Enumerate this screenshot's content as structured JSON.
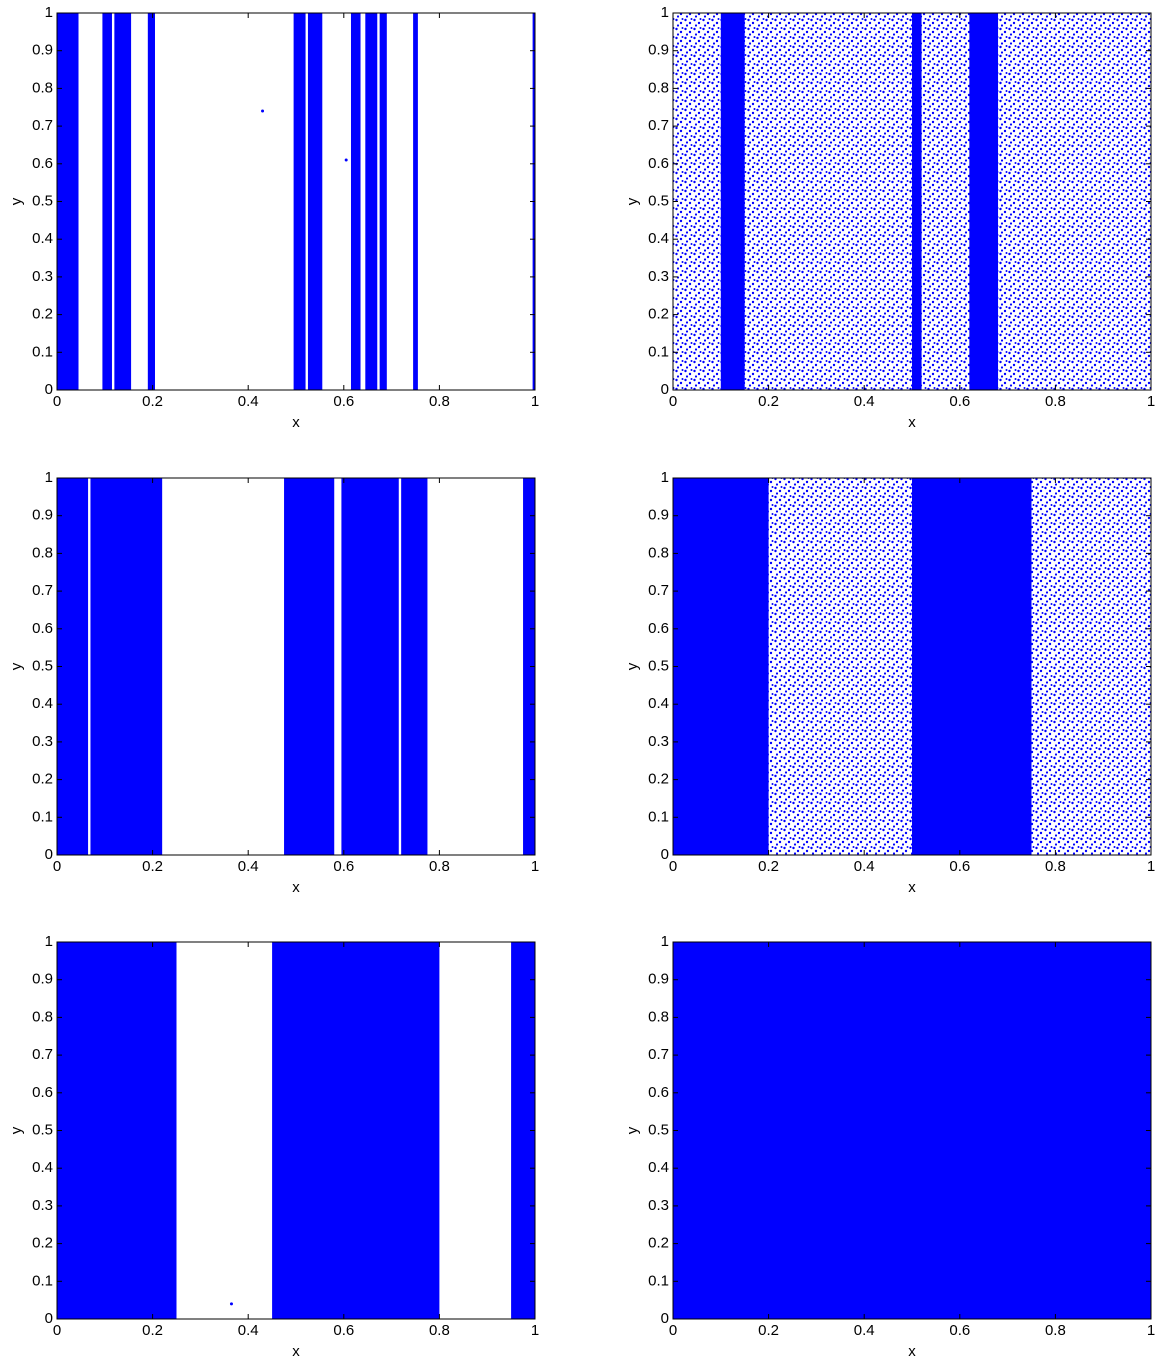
{
  "chart_data": [
    {
      "type": "scatter",
      "xlabel": "x",
      "ylabel": "y",
      "color": "#0000ff",
      "xlim": [
        0,
        1
      ],
      "ylim": [
        0,
        1
      ],
      "xticks": [
        0,
        0.2,
        0.4,
        0.6,
        0.8,
        1
      ],
      "yticks": [
        0,
        0.1,
        0.2,
        0.3,
        0.4,
        0.5,
        0.6,
        0.7,
        0.8,
        0.9,
        1
      ],
      "bands": [
        [
          0,
          0.045
        ],
        [
          0.095,
          0.115
        ],
        [
          0.12,
          0.155
        ],
        [
          0.19,
          0.205
        ],
        [
          0.495,
          0.52
        ],
        [
          0.525,
          0.555
        ],
        [
          0.615,
          0.635
        ],
        [
          0.645,
          0.67
        ],
        [
          0.675,
          0.69
        ],
        [
          0.745,
          0.755
        ],
        [
          0.995,
          1
        ]
      ],
      "sparse_bands": [],
      "points": {
        "x": [
          0.43,
          0.605
        ],
        "y": [
          0.74,
          0.61
        ]
      }
    },
    {
      "type": "scatter",
      "xlabel": "x",
      "ylabel": "y",
      "color": "#0000ff",
      "xlim": [
        0,
        1
      ],
      "ylim": [
        0,
        1
      ],
      "xticks": [
        0,
        0.2,
        0.4,
        0.6,
        0.8,
        1
      ],
      "yticks": [
        0,
        0.1,
        0.2,
        0.3,
        0.4,
        0.5,
        0.6,
        0.7,
        0.8,
        0.9,
        1
      ],
      "bands": [
        [
          0.1,
          0.15
        ],
        [
          0.5,
          0.52
        ],
        [
          0.62,
          0.68
        ]
      ],
      "sparse_bands": [
        [
          0,
          1
        ]
      ],
      "points": {
        "x": [],
        "y": []
      }
    },
    {
      "type": "scatter",
      "xlabel": "x",
      "ylabel": "y",
      "color": "#0000ff",
      "xlim": [
        0,
        1
      ],
      "ylim": [
        0,
        1
      ],
      "xticks": [
        0,
        0.2,
        0.4,
        0.6,
        0.8,
        1
      ],
      "yticks": [
        0,
        0.1,
        0.2,
        0.3,
        0.4,
        0.5,
        0.6,
        0.7,
        0.8,
        0.9,
        1
      ],
      "bands": [
        [
          0,
          0.065
        ],
        [
          0.07,
          0.22
        ],
        [
          0.475,
          0.58
        ],
        [
          0.595,
          0.715
        ],
        [
          0.72,
          0.775
        ],
        [
          0.975,
          1
        ]
      ],
      "sparse_bands": [],
      "points": {
        "x": [],
        "y": []
      }
    },
    {
      "type": "scatter",
      "xlabel": "x",
      "ylabel": "y",
      "color": "#0000ff",
      "xlim": [
        0,
        1
      ],
      "ylim": [
        0,
        1
      ],
      "xticks": [
        0,
        0.2,
        0.4,
        0.6,
        0.8,
        1
      ],
      "yticks": [
        0,
        0.1,
        0.2,
        0.3,
        0.4,
        0.5,
        0.6,
        0.7,
        0.8,
        0.9,
        1
      ],
      "bands": [
        [
          0,
          0.2
        ],
        [
          0.5,
          0.75
        ]
      ],
      "sparse_bands": [
        [
          0.2,
          0.5
        ],
        [
          0.75,
          1
        ]
      ],
      "points": {
        "x": [],
        "y": []
      }
    },
    {
      "type": "scatter",
      "xlabel": "x",
      "ylabel": "y",
      "color": "#0000ff",
      "xlim": [
        0,
        1
      ],
      "ylim": [
        0,
        1
      ],
      "xticks": [
        0,
        0.2,
        0.4,
        0.6,
        0.8,
        1
      ],
      "yticks": [
        0,
        0.1,
        0.2,
        0.3,
        0.4,
        0.5,
        0.6,
        0.7,
        0.8,
        0.9,
        1
      ],
      "bands": [
        [
          0,
          0.25
        ],
        [
          0.45,
          0.8
        ],
        [
          0.95,
          1
        ]
      ],
      "sparse_bands": [],
      "points": {
        "x": [
          0.365
        ],
        "y": [
          0.04
        ]
      }
    },
    {
      "type": "scatter",
      "xlabel": "x",
      "ylabel": "y",
      "color": "#0000ff",
      "xlim": [
        0,
        1
      ],
      "ylim": [
        0,
        1
      ],
      "xticks": [
        0,
        0.2,
        0.4,
        0.6,
        0.8,
        1
      ],
      "yticks": [
        0,
        0.1,
        0.2,
        0.3,
        0.4,
        0.5,
        0.6,
        0.7,
        0.8,
        0.9,
        1
      ],
      "bands": [
        [
          0,
          1
        ]
      ],
      "sparse_bands": [],
      "points": {
        "x": [],
        "y": []
      }
    }
  ]
}
